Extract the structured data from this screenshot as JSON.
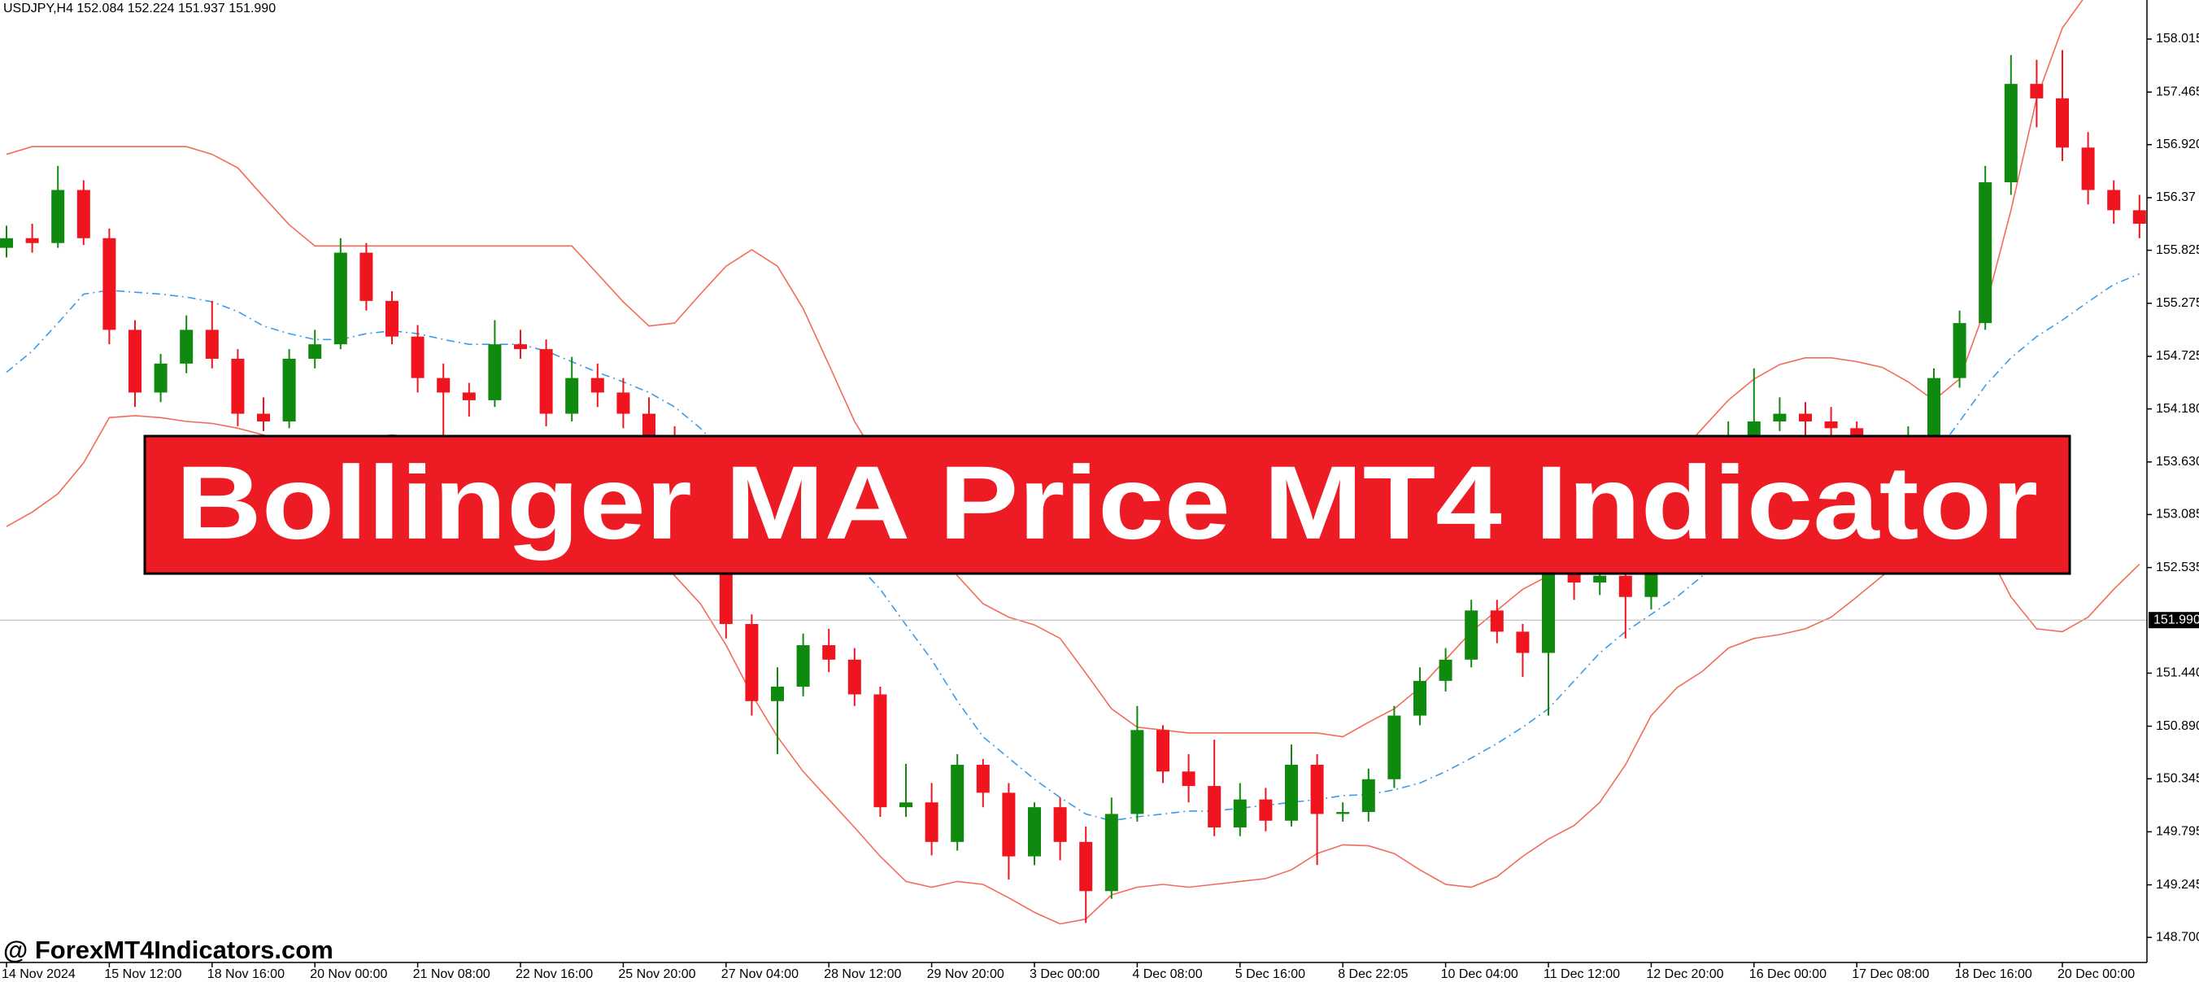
{
  "chart_data": {
    "type": "candlestick",
    "header": "USDJPY,H4  152.084 152.224 151.937 151.990",
    "categories": [
      "14 Nov 2024",
      null,
      null,
      null,
      "15 Nov 12:00",
      null,
      null,
      null,
      "18 Nov 16:00",
      null,
      null,
      null,
      "20 Nov 00:00",
      null,
      null,
      null,
      "21 Nov 08:00",
      null,
      null,
      null,
      "22 Nov 16:00",
      null,
      null,
      null,
      "25 Nov 20:00",
      null,
      null,
      null,
      "27 Nov 04:00",
      null,
      null,
      null,
      "28 Nov 12:00",
      null,
      null,
      null,
      "29 Nov 20:00",
      null,
      null,
      null,
      "3 Dec 00:00",
      null,
      null,
      null,
      "4 Dec 08:00",
      null,
      null,
      null,
      "5 Dec 16:00",
      null,
      null,
      null,
      "8 Dec 22:05",
      null,
      null,
      null,
      "10 Dec 04:00",
      null,
      null,
      null,
      "11 Dec 12:00",
      null,
      null,
      null,
      "12 Dec 20:00",
      null,
      null,
      null,
      "16 Dec 00:00",
      null,
      null,
      null,
      "17 Dec 08:00",
      null,
      null,
      null,
      "18 Dec 16:00",
      null,
      null,
      null,
      "20 Dec 00:00",
      null,
      null,
      null
    ],
    "open": [
      155.85,
      155.95,
      155.9,
      156.45,
      155.95,
      155.0,
      154.35,
      154.65,
      155.0,
      154.7,
      154.13,
      154.05,
      154.7,
      154.85,
      155.8,
      155.3,
      154.93,
      154.5,
      154.35,
      154.27,
      154.85,
      154.8,
      154.13,
      154.5,
      154.35,
      154.13,
      153.9,
      153.4,
      152.8,
      151.95,
      151.15,
      151.3,
      151.73,
      151.58,
      151.22,
      150.05,
      150.1,
      149.69,
      150.49,
      150.2,
      149.54,
      150.05,
      149.69,
      149.18,
      149.98,
      150.85,
      150.42,
      150.27,
      149.84,
      150.13,
      149.91,
      150.49,
      149.98,
      150.0,
      150.34,
      151.0,
      151.36,
      151.58,
      152.09,
      151.87,
      151.65,
      152.6,
      152.38,
      152.45,
      152.23,
      152.8,
      153.2,
      153.6,
      153.9,
      154.05,
      154.13,
      154.05,
      153.98,
      153.7,
      153.6,
      153.9,
      154.5,
      155.07,
      156.53,
      157.55,
      157.4,
      156.89,
      156.45,
      156.24
    ],
    "high": [
      156.08,
      156.1,
      156.7,
      156.55,
      156.05,
      155.1,
      154.75,
      155.15,
      155.3,
      154.8,
      154.3,
      154.8,
      155.0,
      155.95,
      155.9,
      155.4,
      155.05,
      154.65,
      154.45,
      155.1,
      155.0,
      154.9,
      154.72,
      154.65,
      154.5,
      154.3,
      154.0,
      153.5,
      152.9,
      152.05,
      151.5,
      151.85,
      151.9,
      151.7,
      151.3,
      150.5,
      150.3,
      150.6,
      150.55,
      150.3,
      150.1,
      150.15,
      149.85,
      150.15,
      151.1,
      150.9,
      150.6,
      150.75,
      150.3,
      150.25,
      150.7,
      150.6,
      150.1,
      150.45,
      151.1,
      151.5,
      151.7,
      152.2,
      152.2,
      151.95,
      152.8,
      152.7,
      152.6,
      152.55,
      152.95,
      153.35,
      153.75,
      154.05,
      154.6,
      154.3,
      154.25,
      154.2,
      154.05,
      153.8,
      154.0,
      154.6,
      155.2,
      156.7,
      157.85,
      157.8,
      157.9,
      157.05,
      156.55,
      156.4
    ],
    "low": [
      155.75,
      155.8,
      155.85,
      155.88,
      154.85,
      154.2,
      154.25,
      154.55,
      154.6,
      154.0,
      153.95,
      153.98,
      154.6,
      154.8,
      155.2,
      154.85,
      154.35,
      153.9,
      154.1,
      154.2,
      154.7,
      154.0,
      154.05,
      154.2,
      153.98,
      153.8,
      153.3,
      152.7,
      151.8,
      151.0,
      150.6,
      151.2,
      151.45,
      151.1,
      149.95,
      149.95,
      149.55,
      149.6,
      150.05,
      149.3,
      149.45,
      149.5,
      148.85,
      149.1,
      149.9,
      150.3,
      150.1,
      149.75,
      149.75,
      149.8,
      149.85,
      149.45,
      149.9,
      149.9,
      150.25,
      150.9,
      151.25,
      151.5,
      151.75,
      151.4,
      151.0,
      152.2,
      152.25,
      151.8,
      152.1,
      152.7,
      153.1,
      153.5,
      153.8,
      153.95,
      153.9,
      153.85,
      153.6,
      153.5,
      153.5,
      153.8,
      154.4,
      155.0,
      156.4,
      157.1,
      156.75,
      156.3,
      156.1,
      155.95
    ],
    "close": [
      155.95,
      155.9,
      156.45,
      155.95,
      155.0,
      154.35,
      154.65,
      155.0,
      154.7,
      154.13,
      154.05,
      154.7,
      154.85,
      155.8,
      155.3,
      154.93,
      154.5,
      154.35,
      154.27,
      154.85,
      154.8,
      154.13,
      154.5,
      154.35,
      154.13,
      153.9,
      153.4,
      152.8,
      151.95,
      151.15,
      151.3,
      151.73,
      151.58,
      151.22,
      150.05,
      150.1,
      149.69,
      150.49,
      150.2,
      149.54,
      150.05,
      149.69,
      149.18,
      149.98,
      150.85,
      150.42,
      150.27,
      149.84,
      150.13,
      149.91,
      150.49,
      149.98,
      150.0,
      150.34,
      151.0,
      151.36,
      151.58,
      152.09,
      151.87,
      151.65,
      152.6,
      152.38,
      152.45,
      152.23,
      152.8,
      153.2,
      153.6,
      153.9,
      154.05,
      154.13,
      154.05,
      153.98,
      153.7,
      153.6,
      153.9,
      154.5,
      155.07,
      156.53,
      157.55,
      157.4,
      156.89,
      156.45,
      156.24,
      156.1
    ],
    "upper_band": [
      156.82,
      156.9,
      156.9,
      156.9,
      156.9,
      156.9,
      156.9,
      156.9,
      156.82,
      156.68,
      156.38,
      156.09,
      155.87,
      155.87,
      155.87,
      155.87,
      155.87,
      155.87,
      155.87,
      155.87,
      155.87,
      155.87,
      155.87,
      155.58,
      155.29,
      155.04,
      155.07,
      155.37,
      155.66,
      155.83,
      155.66,
      155.22,
      154.64,
      154.05,
      153.62,
      153.33,
      152.89,
      152.45,
      152.16,
      152.02,
      151.94,
      151.8,
      151.44,
      151.07,
      150.88,
      150.85,
      150.82,
      150.82,
      150.82,
      150.82,
      150.82,
      150.82,
      150.78,
      150.93,
      151.07,
      151.29,
      151.58,
      151.87,
      152.09,
      152.31,
      152.45,
      152.67,
      152.89,
      153.11,
      153.4,
      153.69,
      153.98,
      154.27,
      154.49,
      154.64,
      154.71,
      154.71,
      154.67,
      154.61,
      154.46,
      154.27,
      154.49,
      155.22,
      156.24,
      157.4,
      158.13,
      158.5,
      158.86,
      159.08
    ],
    "middle_band": [
      154.56,
      154.78,
      155.07,
      155.37,
      155.41,
      155.39,
      155.37,
      155.34,
      155.29,
      155.19,
      155.04,
      154.96,
      154.9,
      154.9,
      154.96,
      154.99,
      154.96,
      154.9,
      154.85,
      154.85,
      154.85,
      154.78,
      154.67,
      154.56,
      154.46,
      154.35,
      154.2,
      153.98,
      153.69,
      153.4,
      153.18,
      153.01,
      152.82,
      152.6,
      152.31,
      151.94,
      151.58,
      151.15,
      150.78,
      150.56,
      150.34,
      150.15,
      149.98,
      149.91,
      149.95,
      149.98,
      150.01,
      150.01,
      150.04,
      150.07,
      150.1,
      150.13,
      150.17,
      150.18,
      150.23,
      150.3,
      150.42,
      150.56,
      150.71,
      150.88,
      151.07,
      151.36,
      151.65,
      151.87,
      152.05,
      152.23,
      152.45,
      152.67,
      152.89,
      153.04,
      153.18,
      153.3,
      153.4,
      153.47,
      153.55,
      153.69,
      154.05,
      154.42,
      154.71,
      154.93,
      155.1,
      155.29,
      155.47,
      155.58
    ],
    "lower_band": [
      152.96,
      153.11,
      153.3,
      153.62,
      154.09,
      154.11,
      154.09,
      154.05,
      154.03,
      153.98,
      153.91,
      153.84,
      153.79,
      153.82,
      153.88,
      153.91,
      153.88,
      153.82,
      153.77,
      153.74,
      153.69,
      153.62,
      153.47,
      153.25,
      153.04,
      152.75,
      152.45,
      152.16,
      151.73,
      151.22,
      150.78,
      150.42,
      150.13,
      149.84,
      149.54,
      149.28,
      149.22,
      149.28,
      149.25,
      149.11,
      148.96,
      148.84,
      148.89,
      149.14,
      149.22,
      149.25,
      149.22,
      149.25,
      149.28,
      149.31,
      149.4,
      149.57,
      149.66,
      149.65,
      149.57,
      149.4,
      149.25,
      149.22,
      149.33,
      149.54,
      149.72,
      149.86,
      150.1,
      150.49,
      151.0,
      151.29,
      151.46,
      151.7,
      151.8,
      151.84,
      151.9,
      152.02,
      152.23,
      152.45,
      152.67,
      152.89,
      153.01,
      152.75,
      152.23,
      151.9,
      151.87,
      152.02,
      152.31,
      152.57
    ],
    "up_color": "#0f8a0f",
    "down_color": "#f0141e",
    "band_color": "#f36b5a",
    "middle_color": "#3d9be9",
    "ylim": [
      148.44,
      158.42
    ],
    "yticks": [
      158.015,
      157.465,
      {
        "value": 156.92,
        "label": "156.920"
      },
      156.37,
      155.825,
      155.275,
      154.725,
      {
        "value": 154.18,
        "label": "154.180"
      },
      {
        "value": 153.63,
        "label": "153.630"
      },
      153.085,
      152.535,
      {
        "value": 151.44,
        "label": "151.440"
      },
      {
        "value": 150.89,
        "label": "150.890"
      },
      150.345,
      149.795,
      149.245,
      {
        "value": 148.7,
        "label": "148.700"
      }
    ],
    "current_price": {
      "value": 151.99,
      "label": "151.990"
    }
  },
  "banner": {
    "title": "Bollinger MA Price MT4 Indicator",
    "watermark": "@ ForexMT4Indicators.com"
  }
}
